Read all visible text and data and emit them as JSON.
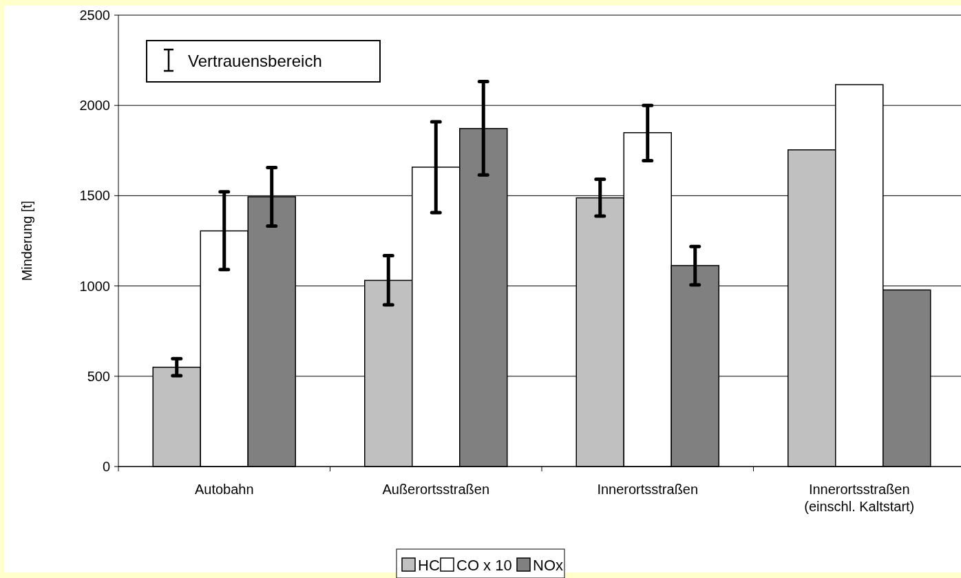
{
  "chart_data": {
    "type": "bar",
    "ylabel": "Minderung [t]",
    "categories": [
      "Autobahn",
      "Außerortsstraßen",
      "Innerortsstraßen",
      "Innerortsstraßen\n(einschl. Kaltstart)"
    ],
    "series": [
      {
        "name": "HC",
        "color": "#c0c0c0",
        "values": [
          550,
          1031,
          1488,
          1754
        ],
        "errors": [
          [
            503,
            597
          ],
          [
            896,
            1168
          ],
          [
            1387,
            1591
          ],
          null
        ]
      },
      {
        "name": "CO x 10",
        "color": "#ffffff",
        "values": [
          1305,
          1658,
          1849,
          2115
        ],
        "errors": [
          [
            1091,
            1522
          ],
          [
            1406,
            1909
          ],
          [
            1694,
            2000
          ],
          null
        ]
      },
      {
        "name": "NOx",
        "color": "#808080",
        "values": [
          1494,
          1872,
          1113,
          978
        ],
        "errors": [
          [
            1332,
            1656
          ],
          [
            1615,
            2132
          ],
          [
            1006,
            1219
          ],
          null
        ]
      }
    ],
    "ylim": [
      0,
      2500
    ],
    "yticks": [
      0,
      500,
      1000,
      1500,
      2000,
      2500
    ],
    "grid": "y",
    "legend": "bottom",
    "annotations": [
      "Vertrauensbereich"
    ]
  }
}
